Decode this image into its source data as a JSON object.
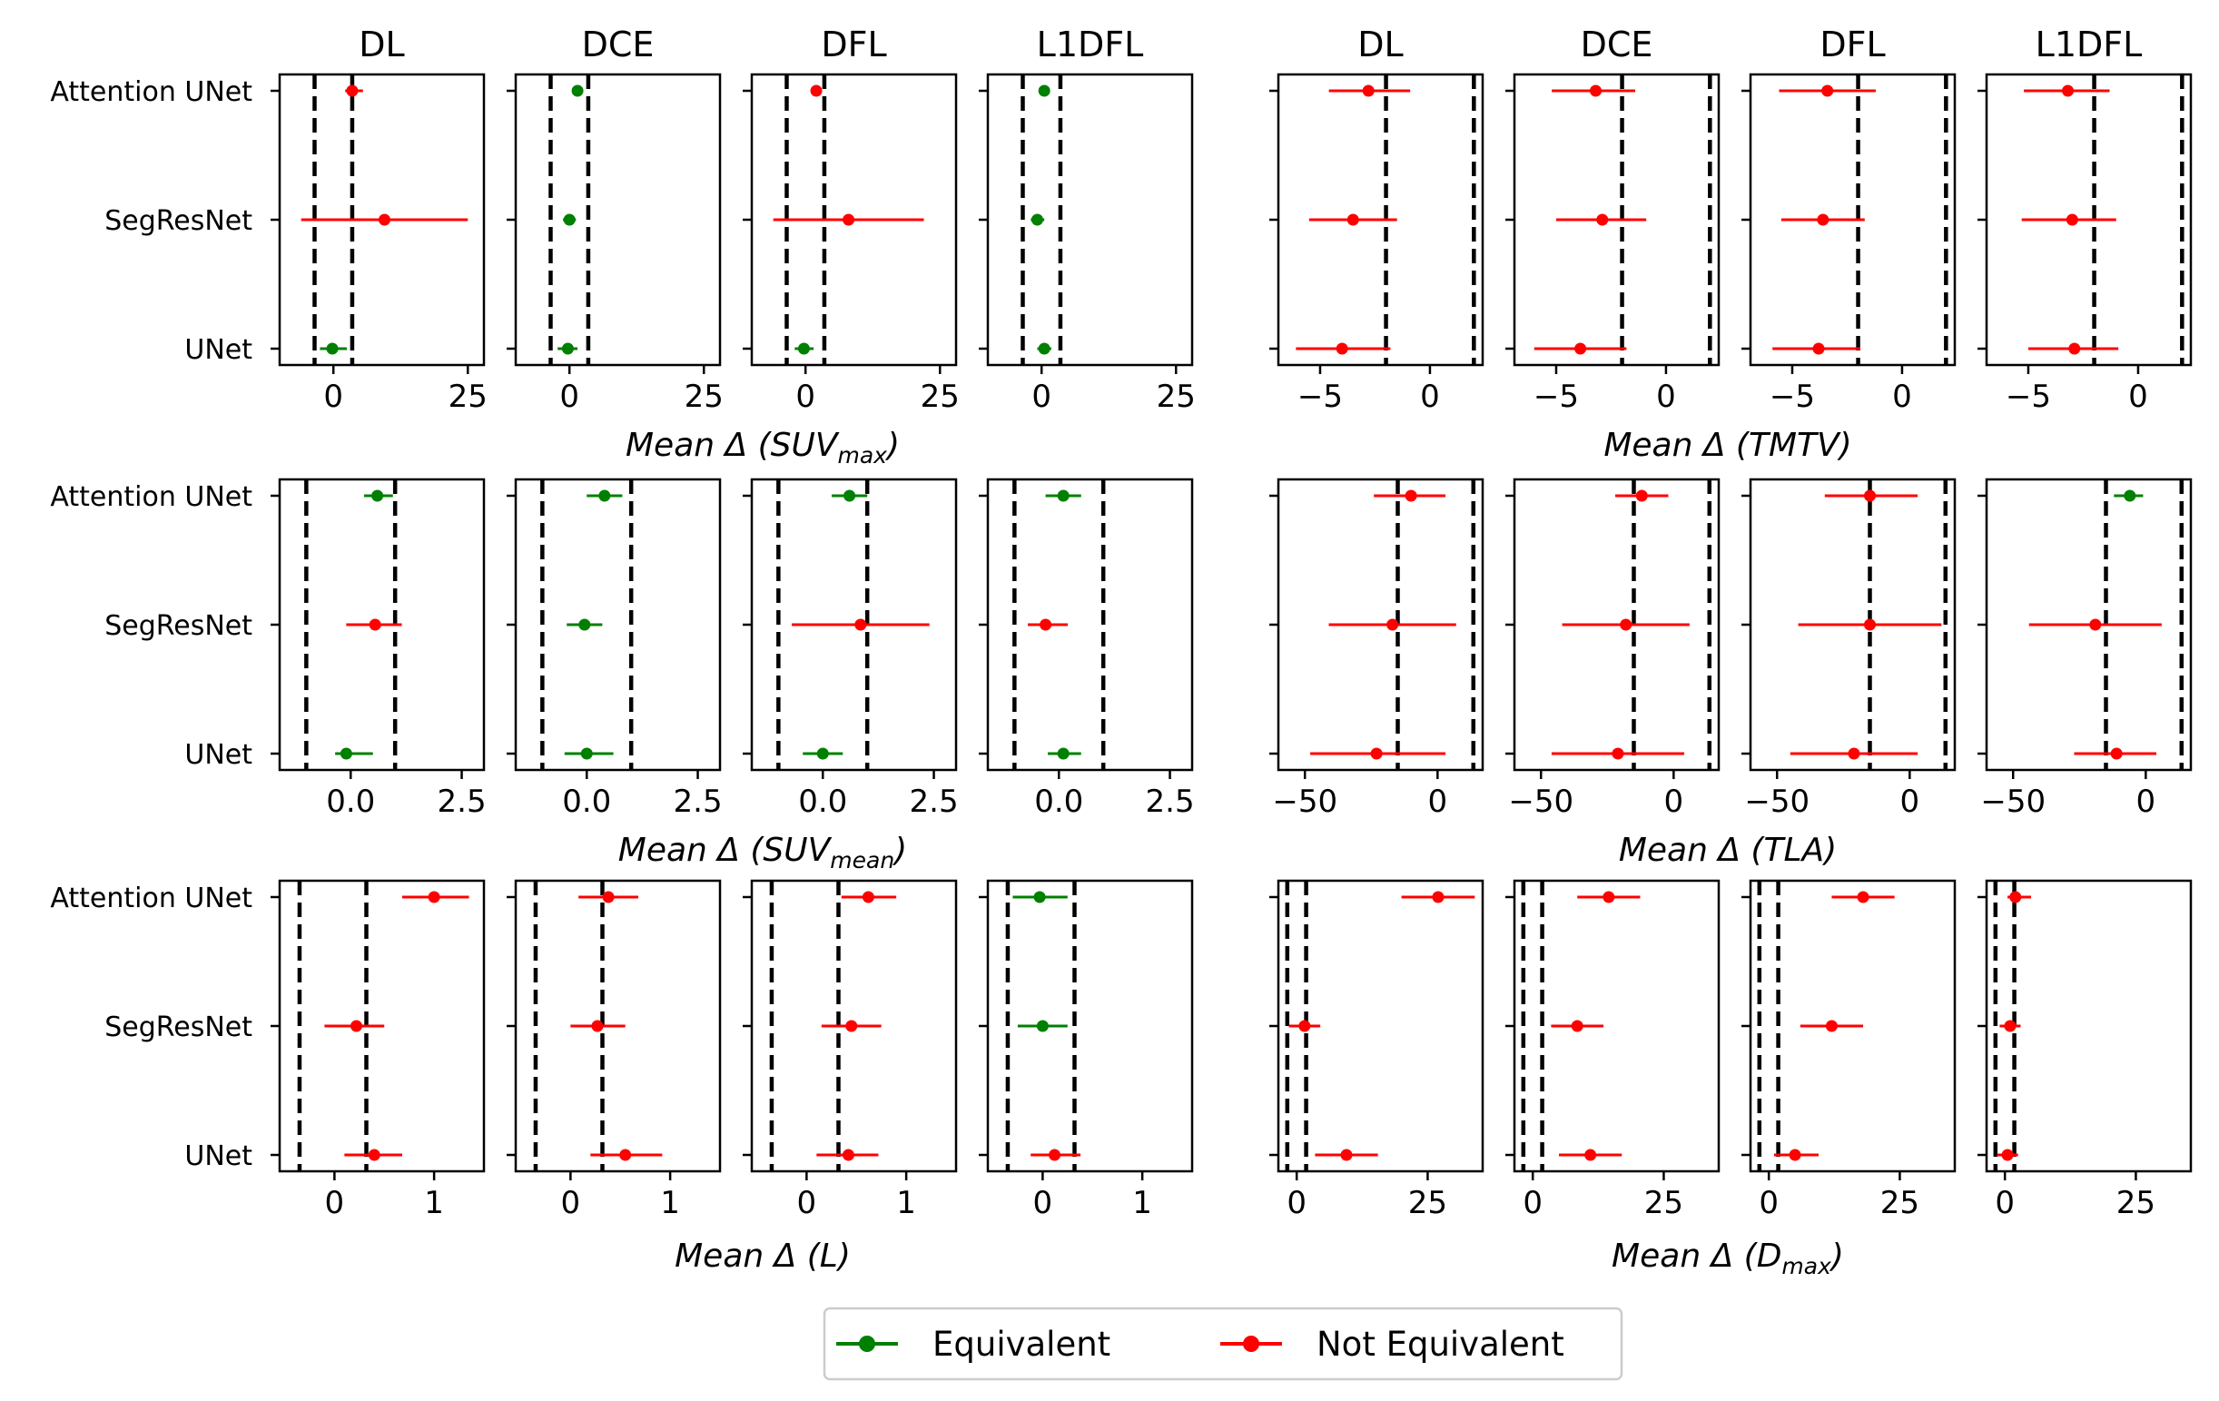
{
  "chart_data": {
    "type": "scatter",
    "subtype": "forest-plot-equivalence",
    "models": [
      "Attention UNet",
      "SegResNet",
      "UNet"
    ],
    "losses": [
      "DL",
      "DCE",
      "DFL",
      "L1DFL"
    ],
    "colors": {
      "Equivalent": "#008000",
      "Not Equivalent": "#ff0000",
      "margin": "#000000"
    },
    "legend": {
      "position": "bottom-center",
      "entries": [
        {
          "label": "Equivalent",
          "color": "#008000"
        },
        {
          "label": "Not Equivalent",
          "color": "#ff0000"
        }
      ]
    },
    "metrics": [
      {
        "id": "suvmax",
        "xlabel_main": "Mean Δ (SUV",
        "xlabel_sub": "max",
        "xlabel_end": ")",
        "xlim": [
          -10,
          28
        ],
        "ticks": [
          0,
          25
        ],
        "tick_labels": [
          "0",
          "25"
        ],
        "margins": [
          -3.5,
          3.5
        ],
        "panels": [
          {
            "loss": "DL",
            "points": [
              {
                "model": "Attention UNet",
                "mean": 3.5,
                "lo": 2.2,
                "hi": 5.5,
                "status": "Not Equivalent"
              },
              {
                "model": "SegResNet",
                "mean": 9.5,
                "lo": -6.0,
                "hi": 25.0,
                "status": "Not Equivalent"
              },
              {
                "model": "UNet",
                "mean": -0.2,
                "lo": -2.5,
                "hi": 2.5,
                "status": "Equivalent"
              }
            ]
          },
          {
            "loss": "DCE",
            "points": [
              {
                "model": "Attention UNet",
                "mean": 1.5,
                "lo": 0.8,
                "hi": 2.3,
                "status": "Equivalent"
              },
              {
                "model": "SegResNet",
                "mean": 0.0,
                "lo": -1.2,
                "hi": 1.2,
                "status": "Equivalent"
              },
              {
                "model": "UNet",
                "mean": -0.3,
                "lo": -2.2,
                "hi": 1.5,
                "status": "Equivalent"
              }
            ]
          },
          {
            "loss": "DFL",
            "points": [
              {
                "model": "Attention UNet",
                "mean": 2.0,
                "lo": 1.0,
                "hi": 3.0,
                "status": "Not Equivalent"
              },
              {
                "model": "SegResNet",
                "mean": 8.0,
                "lo": -6.0,
                "hi": 22.0,
                "status": "Not Equivalent"
              },
              {
                "model": "UNet",
                "mean": -0.3,
                "lo": -2.0,
                "hi": 1.5,
                "status": "Equivalent"
              }
            ]
          },
          {
            "loss": "L1DFL",
            "points": [
              {
                "model": "Attention UNet",
                "mean": 0.5,
                "lo": -0.5,
                "hi": 1.5,
                "status": "Equivalent"
              },
              {
                "model": "SegResNet",
                "mean": -0.8,
                "lo": -2.0,
                "hi": 0.5,
                "status": "Equivalent"
              },
              {
                "model": "UNet",
                "mean": 0.5,
                "lo": -0.8,
                "hi": 1.8,
                "status": "Equivalent"
              }
            ]
          }
        ]
      },
      {
        "id": "tmtv",
        "xlabel_main": "Mean Δ (TMTV)",
        "xlabel_sub": "",
        "xlabel_end": "",
        "xlim": [
          -6.9,
          2.4
        ],
        "ticks": [
          -5,
          0
        ],
        "tick_labels": [
          "−5",
          "0"
        ],
        "margins": [
          -2.0,
          2.0
        ],
        "panels": [
          {
            "loss": "DL",
            "points": [
              {
                "model": "Attention UNet",
                "mean": -2.8,
                "lo": -4.6,
                "hi": -0.9,
                "status": "Not Equivalent"
              },
              {
                "model": "SegResNet",
                "mean": -3.5,
                "lo": -5.5,
                "hi": -1.5,
                "status": "Not Equivalent"
              },
              {
                "model": "UNet",
                "mean": -4.0,
                "lo": -6.1,
                "hi": -1.8,
                "status": "Not Equivalent"
              }
            ]
          },
          {
            "loss": "DCE",
            "points": [
              {
                "model": "Attention UNet",
                "mean": -3.2,
                "lo": -5.2,
                "hi": -1.4,
                "status": "Not Equivalent"
              },
              {
                "model": "SegResNet",
                "mean": -2.9,
                "lo": -5.0,
                "hi": -0.9,
                "status": "Not Equivalent"
              },
              {
                "model": "UNet",
                "mean": -3.9,
                "lo": -6.0,
                "hi": -1.8,
                "status": "Not Equivalent"
              }
            ]
          },
          {
            "loss": "DFL",
            "points": [
              {
                "model": "Attention UNet",
                "mean": -3.4,
                "lo": -5.6,
                "hi": -1.2,
                "status": "Not Equivalent"
              },
              {
                "model": "SegResNet",
                "mean": -3.6,
                "lo": -5.5,
                "hi": -1.7,
                "status": "Not Equivalent"
              },
              {
                "model": "UNet",
                "mean": -3.8,
                "lo": -5.9,
                "hi": -1.9,
                "status": "Not Equivalent"
              }
            ]
          },
          {
            "loss": "L1DFL",
            "points": [
              {
                "model": "Attention UNet",
                "mean": -3.2,
                "lo": -5.2,
                "hi": -1.3,
                "status": "Not Equivalent"
              },
              {
                "model": "SegResNet",
                "mean": -3.0,
                "lo": -5.3,
                "hi": -1.0,
                "status": "Not Equivalent"
              },
              {
                "model": "UNet",
                "mean": -2.9,
                "lo": -5.0,
                "hi": -0.9,
                "status": "Not Equivalent"
              }
            ]
          }
        ]
      },
      {
        "id": "suvmean",
        "xlabel_main": "Mean Δ (SUV",
        "xlabel_sub": "mean",
        "xlabel_end": ")",
        "xlim": [
          -1.6,
          3.0
        ],
        "ticks": [
          0,
          2.5
        ],
        "tick_labels": [
          "0.0",
          "2.5"
        ],
        "margins": [
          -1.0,
          1.0
        ],
        "panels": [
          {
            "loss": "DL",
            "points": [
              {
                "model": "Attention UNet",
                "mean": 0.6,
                "lo": 0.3,
                "hi": 0.95,
                "status": "Equivalent"
              },
              {
                "model": "SegResNet",
                "mean": 0.55,
                "lo": -0.1,
                "hi": 1.15,
                "status": "Not Equivalent"
              },
              {
                "model": "UNet",
                "mean": -0.1,
                "lo": -0.35,
                "hi": 0.5,
                "status": "Equivalent"
              }
            ]
          },
          {
            "loss": "DCE",
            "points": [
              {
                "model": "Attention UNet",
                "mean": 0.4,
                "lo": 0.0,
                "hi": 0.8,
                "status": "Equivalent"
              },
              {
                "model": "SegResNet",
                "mean": -0.05,
                "lo": -0.45,
                "hi": 0.35,
                "status": "Equivalent"
              },
              {
                "model": "UNet",
                "mean": 0.0,
                "lo": -0.5,
                "hi": 0.6,
                "status": "Equivalent"
              }
            ]
          },
          {
            "loss": "DFL",
            "points": [
              {
                "model": "Attention UNet",
                "mean": 0.6,
                "lo": 0.2,
                "hi": 1.0,
                "status": "Equivalent"
              },
              {
                "model": "SegResNet",
                "mean": 0.85,
                "lo": -0.7,
                "hi": 2.4,
                "status": "Not Equivalent"
              },
              {
                "model": "UNet",
                "mean": 0.0,
                "lo": -0.45,
                "hi": 0.45,
                "status": "Equivalent"
              }
            ]
          },
          {
            "loss": "L1DFL",
            "points": [
              {
                "model": "Attention UNet",
                "mean": 0.1,
                "lo": -0.3,
                "hi": 0.5,
                "status": "Equivalent"
              },
              {
                "model": "SegResNet",
                "mean": -0.3,
                "lo": -0.7,
                "hi": 0.2,
                "status": "Not Equivalent"
              },
              {
                "model": "UNet",
                "mean": 0.1,
                "lo": -0.25,
                "hi": 0.5,
                "status": "Equivalent"
              }
            ]
          }
        ]
      },
      {
        "id": "tla",
        "xlabel_main": "Mean Δ (TLA)",
        "xlabel_sub": "",
        "xlabel_end": "",
        "xlim": [
          -60,
          17
        ],
        "ticks": [
          -50,
          0
        ],
        "tick_labels": [
          "−50",
          "0"
        ],
        "margins": [
          -15,
          13.5
        ],
        "panels": [
          {
            "loss": "DL",
            "points": [
              {
                "model": "Attention UNet",
                "mean": -10,
                "lo": -24,
                "hi": 3,
                "status": "Not Equivalent"
              },
              {
                "model": "SegResNet",
                "mean": -17,
                "lo": -41,
                "hi": 7,
                "status": "Not Equivalent"
              },
              {
                "model": "UNet",
                "mean": -23,
                "lo": -48,
                "hi": 3,
                "status": "Not Equivalent"
              }
            ]
          },
          {
            "loss": "DCE",
            "points": [
              {
                "model": "Attention UNet",
                "mean": -12,
                "lo": -22,
                "hi": -2,
                "status": "Not Equivalent"
              },
              {
                "model": "SegResNet",
                "mean": -18,
                "lo": -42,
                "hi": 6,
                "status": "Not Equivalent"
              },
              {
                "model": "UNet",
                "mean": -21,
                "lo": -46,
                "hi": 4,
                "status": "Not Equivalent"
              }
            ]
          },
          {
            "loss": "DFL",
            "points": [
              {
                "model": "Attention UNet",
                "mean": -15,
                "lo": -32,
                "hi": 3,
                "status": "Not Equivalent"
              },
              {
                "model": "SegResNet",
                "mean": -15,
                "lo": -42,
                "hi": 12,
                "status": "Not Equivalent"
              },
              {
                "model": "UNet",
                "mean": -21,
                "lo": -45,
                "hi": 3,
                "status": "Not Equivalent"
              }
            ]
          },
          {
            "loss": "L1DFL",
            "points": [
              {
                "model": "Attention UNet",
                "mean": -6,
                "lo": -12,
                "hi": -1,
                "status": "Equivalent"
              },
              {
                "model": "SegResNet",
                "mean": -19,
                "lo": -44,
                "hi": 6,
                "status": "Not Equivalent"
              },
              {
                "model": "UNet",
                "mean": -11,
                "lo": -27,
                "hi": 4,
                "status": "Not Equivalent"
              }
            ]
          }
        ]
      },
      {
        "id": "L",
        "xlabel_main": "Mean Δ (L)",
        "xlabel_sub": "",
        "xlabel_end": "",
        "xlim": [
          -0.55,
          1.5
        ],
        "ticks": [
          0,
          1
        ],
        "tick_labels": [
          "0",
          "1"
        ],
        "margins": [
          -0.35,
          0.32
        ],
        "panels": [
          {
            "loss": "DL",
            "points": [
              {
                "model": "Attention UNet",
                "mean": 1.0,
                "lo": 0.68,
                "hi": 1.35,
                "status": "Not Equivalent"
              },
              {
                "model": "SegResNet",
                "mean": 0.22,
                "lo": -0.1,
                "hi": 0.5,
                "status": "Not Equivalent"
              },
              {
                "model": "UNet",
                "mean": 0.4,
                "lo": 0.1,
                "hi": 0.68,
                "status": "Not Equivalent"
              }
            ]
          },
          {
            "loss": "DCE",
            "points": [
              {
                "model": "Attention UNet",
                "mean": 0.38,
                "lo": 0.08,
                "hi": 0.68,
                "status": "Not Equivalent"
              },
              {
                "model": "SegResNet",
                "mean": 0.27,
                "lo": 0.0,
                "hi": 0.55,
                "status": "Not Equivalent"
              },
              {
                "model": "UNet",
                "mean": 0.55,
                "lo": 0.2,
                "hi": 0.92,
                "status": "Not Equivalent"
              }
            ]
          },
          {
            "loss": "DFL",
            "points": [
              {
                "model": "Attention UNet",
                "mean": 0.62,
                "lo": 0.35,
                "hi": 0.9,
                "status": "Not Equivalent"
              },
              {
                "model": "SegResNet",
                "mean": 0.45,
                "lo": 0.15,
                "hi": 0.75,
                "status": "Not Equivalent"
              },
              {
                "model": "UNet",
                "mean": 0.42,
                "lo": 0.1,
                "hi": 0.72,
                "status": "Not Equivalent"
              }
            ]
          },
          {
            "loss": "L1DFL",
            "points": [
              {
                "model": "Attention UNet",
                "mean": -0.03,
                "lo": -0.3,
                "hi": 0.25,
                "status": "Equivalent"
              },
              {
                "model": "SegResNet",
                "mean": 0.0,
                "lo": -0.25,
                "hi": 0.25,
                "status": "Equivalent"
              },
              {
                "model": "UNet",
                "mean": 0.12,
                "lo": -0.12,
                "hi": 0.38,
                "status": "Not Equivalent"
              }
            ]
          }
        ]
      },
      {
        "id": "dmax",
        "xlabel_main": "Mean Δ (D",
        "xlabel_sub": "max",
        "xlabel_end": ")",
        "xlim": [
          -3.5,
          35.5
        ],
        "ticks": [
          0,
          25
        ],
        "tick_labels": [
          "0",
          "25"
        ],
        "margins": [
          -1.8,
          1.8
        ],
        "panels": [
          {
            "loss": "DL",
            "points": [
              {
                "model": "Attention UNet",
                "mean": 27,
                "lo": 20,
                "hi": 34,
                "status": "Not Equivalent"
              },
              {
                "model": "SegResNet",
                "mean": 1.5,
                "lo": -1.5,
                "hi": 4.5,
                "status": "Not Equivalent"
              },
              {
                "model": "UNet",
                "mean": 9.5,
                "lo": 3.5,
                "hi": 15.5,
                "status": "Not Equivalent"
              }
            ]
          },
          {
            "loss": "DCE",
            "points": [
              {
                "model": "Attention UNet",
                "mean": 14.5,
                "lo": 8.5,
                "hi": 20.5,
                "status": "Not Equivalent"
              },
              {
                "model": "SegResNet",
                "mean": 8.5,
                "lo": 3.5,
                "hi": 13.5,
                "status": "Not Equivalent"
              },
              {
                "model": "UNet",
                "mean": 11,
                "lo": 5,
                "hi": 17,
                "status": "Not Equivalent"
              }
            ]
          },
          {
            "loss": "DFL",
            "points": [
              {
                "model": "Attention UNet",
                "mean": 18,
                "lo": 12,
                "hi": 24,
                "status": "Not Equivalent"
              },
              {
                "model": "SegResNet",
                "mean": 12,
                "lo": 6,
                "hi": 18,
                "status": "Not Equivalent"
              },
              {
                "model": "UNet",
                "mean": 5,
                "lo": 1,
                "hi": 9.5,
                "status": "Not Equivalent"
              }
            ]
          },
          {
            "loss": "L1DFL",
            "points": [
              {
                "model": "Attention UNet",
                "mean": 2,
                "lo": 0.5,
                "hi": 5,
                "status": "Not Equivalent"
              },
              {
                "model": "SegResNet",
                "mean": 1.0,
                "lo": -1.0,
                "hi": 3.0,
                "status": "Not Equivalent"
              },
              {
                "model": "UNet",
                "mean": 0.5,
                "lo": -1.5,
                "hi": 2.5,
                "status": "Not Equivalent"
              }
            ]
          }
        ]
      }
    ]
  }
}
